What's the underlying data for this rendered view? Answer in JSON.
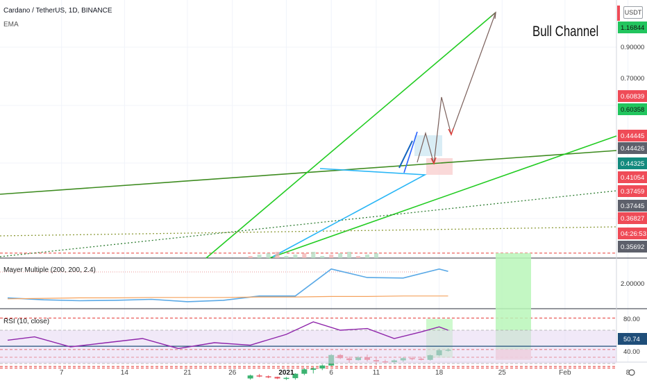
{
  "chart": {
    "title": "Cardano / TetherUS, 1D, BINANCE",
    "indicator": "EMA",
    "currency": "USDT",
    "annotation": "Bull Channel"
  },
  "panes": {
    "mayer_label": "Mayer Multiple (200, 200, 2.4)",
    "rsi_label": "RSI (10, close)"
  },
  "x_axis": {
    "ticks": [
      "7",
      "14",
      "21",
      "26",
      "2021",
      "6",
      "11",
      "18",
      "25",
      "Feb",
      "8"
    ]
  },
  "colors": {
    "up": "#26a69a",
    "down": "#ef5350",
    "up_candle": "#3cb371",
    "down_candle": "#e8505b",
    "channel": "#22cc22",
    "trend": "#3d8b1f",
    "cyan": "#29b6f6",
    "red_dash": "#e53935",
    "mayer_line": "#5aa9e6",
    "mayer_ref": "#f5a25d",
    "rsi_line": "#8e24aa",
    "rsi_band": "#e6d7f3"
  },
  "chart_data": [
    {
      "type": "candlestick",
      "title": "Cardano / TetherUS, 1D, BINANCE",
      "y_scale": "log",
      "price_labels": [
        {
          "value": "1.16844",
          "style": "green"
        },
        {
          "value": "0.90000",
          "style": "plain"
        },
        {
          "value": "0.70000",
          "style": "plain"
        },
        {
          "value": "0.60839",
          "style": "red"
        },
        {
          "value": "0.60358",
          "style": "green"
        },
        {
          "value": "0.44445",
          "style": "red"
        },
        {
          "value": "0.44426",
          "style": "gray"
        },
        {
          "value": "0.44325",
          "style": "teal"
        },
        {
          "value": "0.41054",
          "style": "red"
        },
        {
          "value": "0.37459",
          "style": "red"
        },
        {
          "value": "0.37445",
          "style": "gray"
        },
        {
          "value": "0.36827",
          "style": "red"
        },
        {
          "value": "04:26:53",
          "style": "red"
        },
        {
          "value": "0.35692",
          "style": "gray"
        }
      ],
      "candles_from_2020_12_28": [
        {
          "date": "2020-12-28",
          "open": 0.332,
          "high": 0.345,
          "low": 0.328,
          "close": 0.342
        },
        {
          "date": "2020-12-29",
          "open": 0.342,
          "high": 0.347,
          "low": 0.336,
          "close": 0.339
        },
        {
          "date": "2020-12-30",
          "open": 0.339,
          "high": 0.342,
          "low": 0.333,
          "close": 0.337
        },
        {
          "date": "2020-12-31",
          "open": 0.337,
          "high": 0.338,
          "low": 0.33,
          "close": 0.332
        },
        {
          "date": "2021-01-01",
          "open": 0.331,
          "high": 0.337,
          "low": 0.327,
          "close": 0.334
        },
        {
          "date": "2021-01-02",
          "open": 0.333,
          "high": 0.35,
          "low": 0.328,
          "close": 0.348
        },
        {
          "date": "2021-01-03",
          "open": 0.348,
          "high": 0.368,
          "low": 0.343,
          "close": 0.364
        },
        {
          "date": "2021-01-04",
          "open": 0.362,
          "high": 0.372,
          "low": 0.349,
          "close": 0.367
        },
        {
          "date": "2021-01-05",
          "open": 0.367,
          "high": 0.382,
          "low": 0.361,
          "close": 0.378
        },
        {
          "date": "2021-01-06",
          "open": 0.378,
          "high": 0.424,
          "low": 0.376,
          "close": 0.42
        },
        {
          "date": "2021-01-07",
          "open": 0.42,
          "high": 0.424,
          "low": 0.403,
          "close": 0.407
        },
        {
          "date": "2021-01-08",
          "open": 0.406,
          "high": 0.414,
          "low": 0.388,
          "close": 0.399
        },
        {
          "date": "2021-01-09",
          "open": 0.399,
          "high": 0.415,
          "low": 0.397,
          "close": 0.41
        },
        {
          "date": "2021-01-10",
          "open": 0.411,
          "high": 0.422,
          "low": 0.394,
          "close": 0.4
        },
        {
          "date": "2021-01-11",
          "open": 0.399,
          "high": 0.409,
          "low": 0.381,
          "close": 0.394
        },
        {
          "date": "2021-01-12",
          "open": 0.394,
          "high": 0.401,
          "low": 0.388,
          "close": 0.391
        },
        {
          "date": "2021-01-13",
          "open": 0.391,
          "high": 0.402,
          "low": 0.384,
          "close": 0.398
        },
        {
          "date": "2021-01-14",
          "open": 0.398,
          "high": 0.411,
          "low": 0.392,
          "close": 0.407
        },
        {
          "date": "2021-01-15",
          "open": 0.407,
          "high": 0.414,
          "low": 0.398,
          "close": 0.405
        },
        {
          "date": "2021-01-16",
          "open": 0.405,
          "high": 0.412,
          "low": 0.398,
          "close": 0.4
        },
        {
          "date": "2021-01-17",
          "open": 0.4,
          "high": 0.422,
          "low": 0.397,
          "close": 0.419
        },
        {
          "date": "2021-01-18",
          "open": 0.419,
          "high": 0.447,
          "low": 0.415,
          "close": 0.441
        },
        {
          "date": "2021-01-19",
          "open": 0.441,
          "high": 0.449,
          "low": 0.435,
          "close": 0.443
        }
      ],
      "levels": [
        1.16844,
        0.60839,
        0.44445,
        0.44325,
        0.41054,
        0.37459,
        0.36827
      ]
    },
    {
      "type": "line",
      "title": "Mayer Multiple (200, 200, 2.4)",
      "y_tick": "2.00000",
      "x": [
        "2020-12-01",
        "2020-12-05",
        "2020-12-09",
        "2020-12-13",
        "2020-12-17",
        "2020-12-21",
        "2020-12-25",
        "2020-12-29",
        "2021-01-02",
        "2021-01-06",
        "2021-01-10",
        "2021-01-14",
        "2021-01-18",
        "2021-01-19"
      ],
      "series": [
        {
          "values": [
            1.84,
            1.8,
            1.78,
            1.79,
            1.81,
            1.76,
            1.79,
            1.88,
            1.88,
            2.45,
            2.27,
            2.26,
            2.45,
            2.4
          ]
        },
        {
          "values": [
            1.82,
            1.83,
            1.84,
            1.84,
            1.85,
            1.85,
            1.85,
            1.86,
            1.86,
            1.87,
            1.87,
            1.88,
            1.88,
            1.88
          ]
        }
      ]
    },
    {
      "type": "line",
      "title": "RSI (10, close)",
      "y_ticks": [
        "80.00",
        "50.74",
        "40.00"
      ],
      "x": [
        "2020-12-01",
        "2020-12-04",
        "2020-12-08",
        "2020-12-12",
        "2020-12-16",
        "2020-12-20",
        "2020-12-24",
        "2020-12-28",
        "2021-01-01",
        "2021-01-04",
        "2021-01-07",
        "2021-01-10",
        "2021-01-13",
        "2021-01-16",
        "2021-01-18",
        "2021-01-19"
      ],
      "series": [
        {
          "values": [
            58,
            62,
            50,
            55,
            60,
            48,
            55,
            52,
            65,
            80,
            70,
            72,
            60,
            68,
            74,
            70
          ]
        }
      ]
    }
  ]
}
